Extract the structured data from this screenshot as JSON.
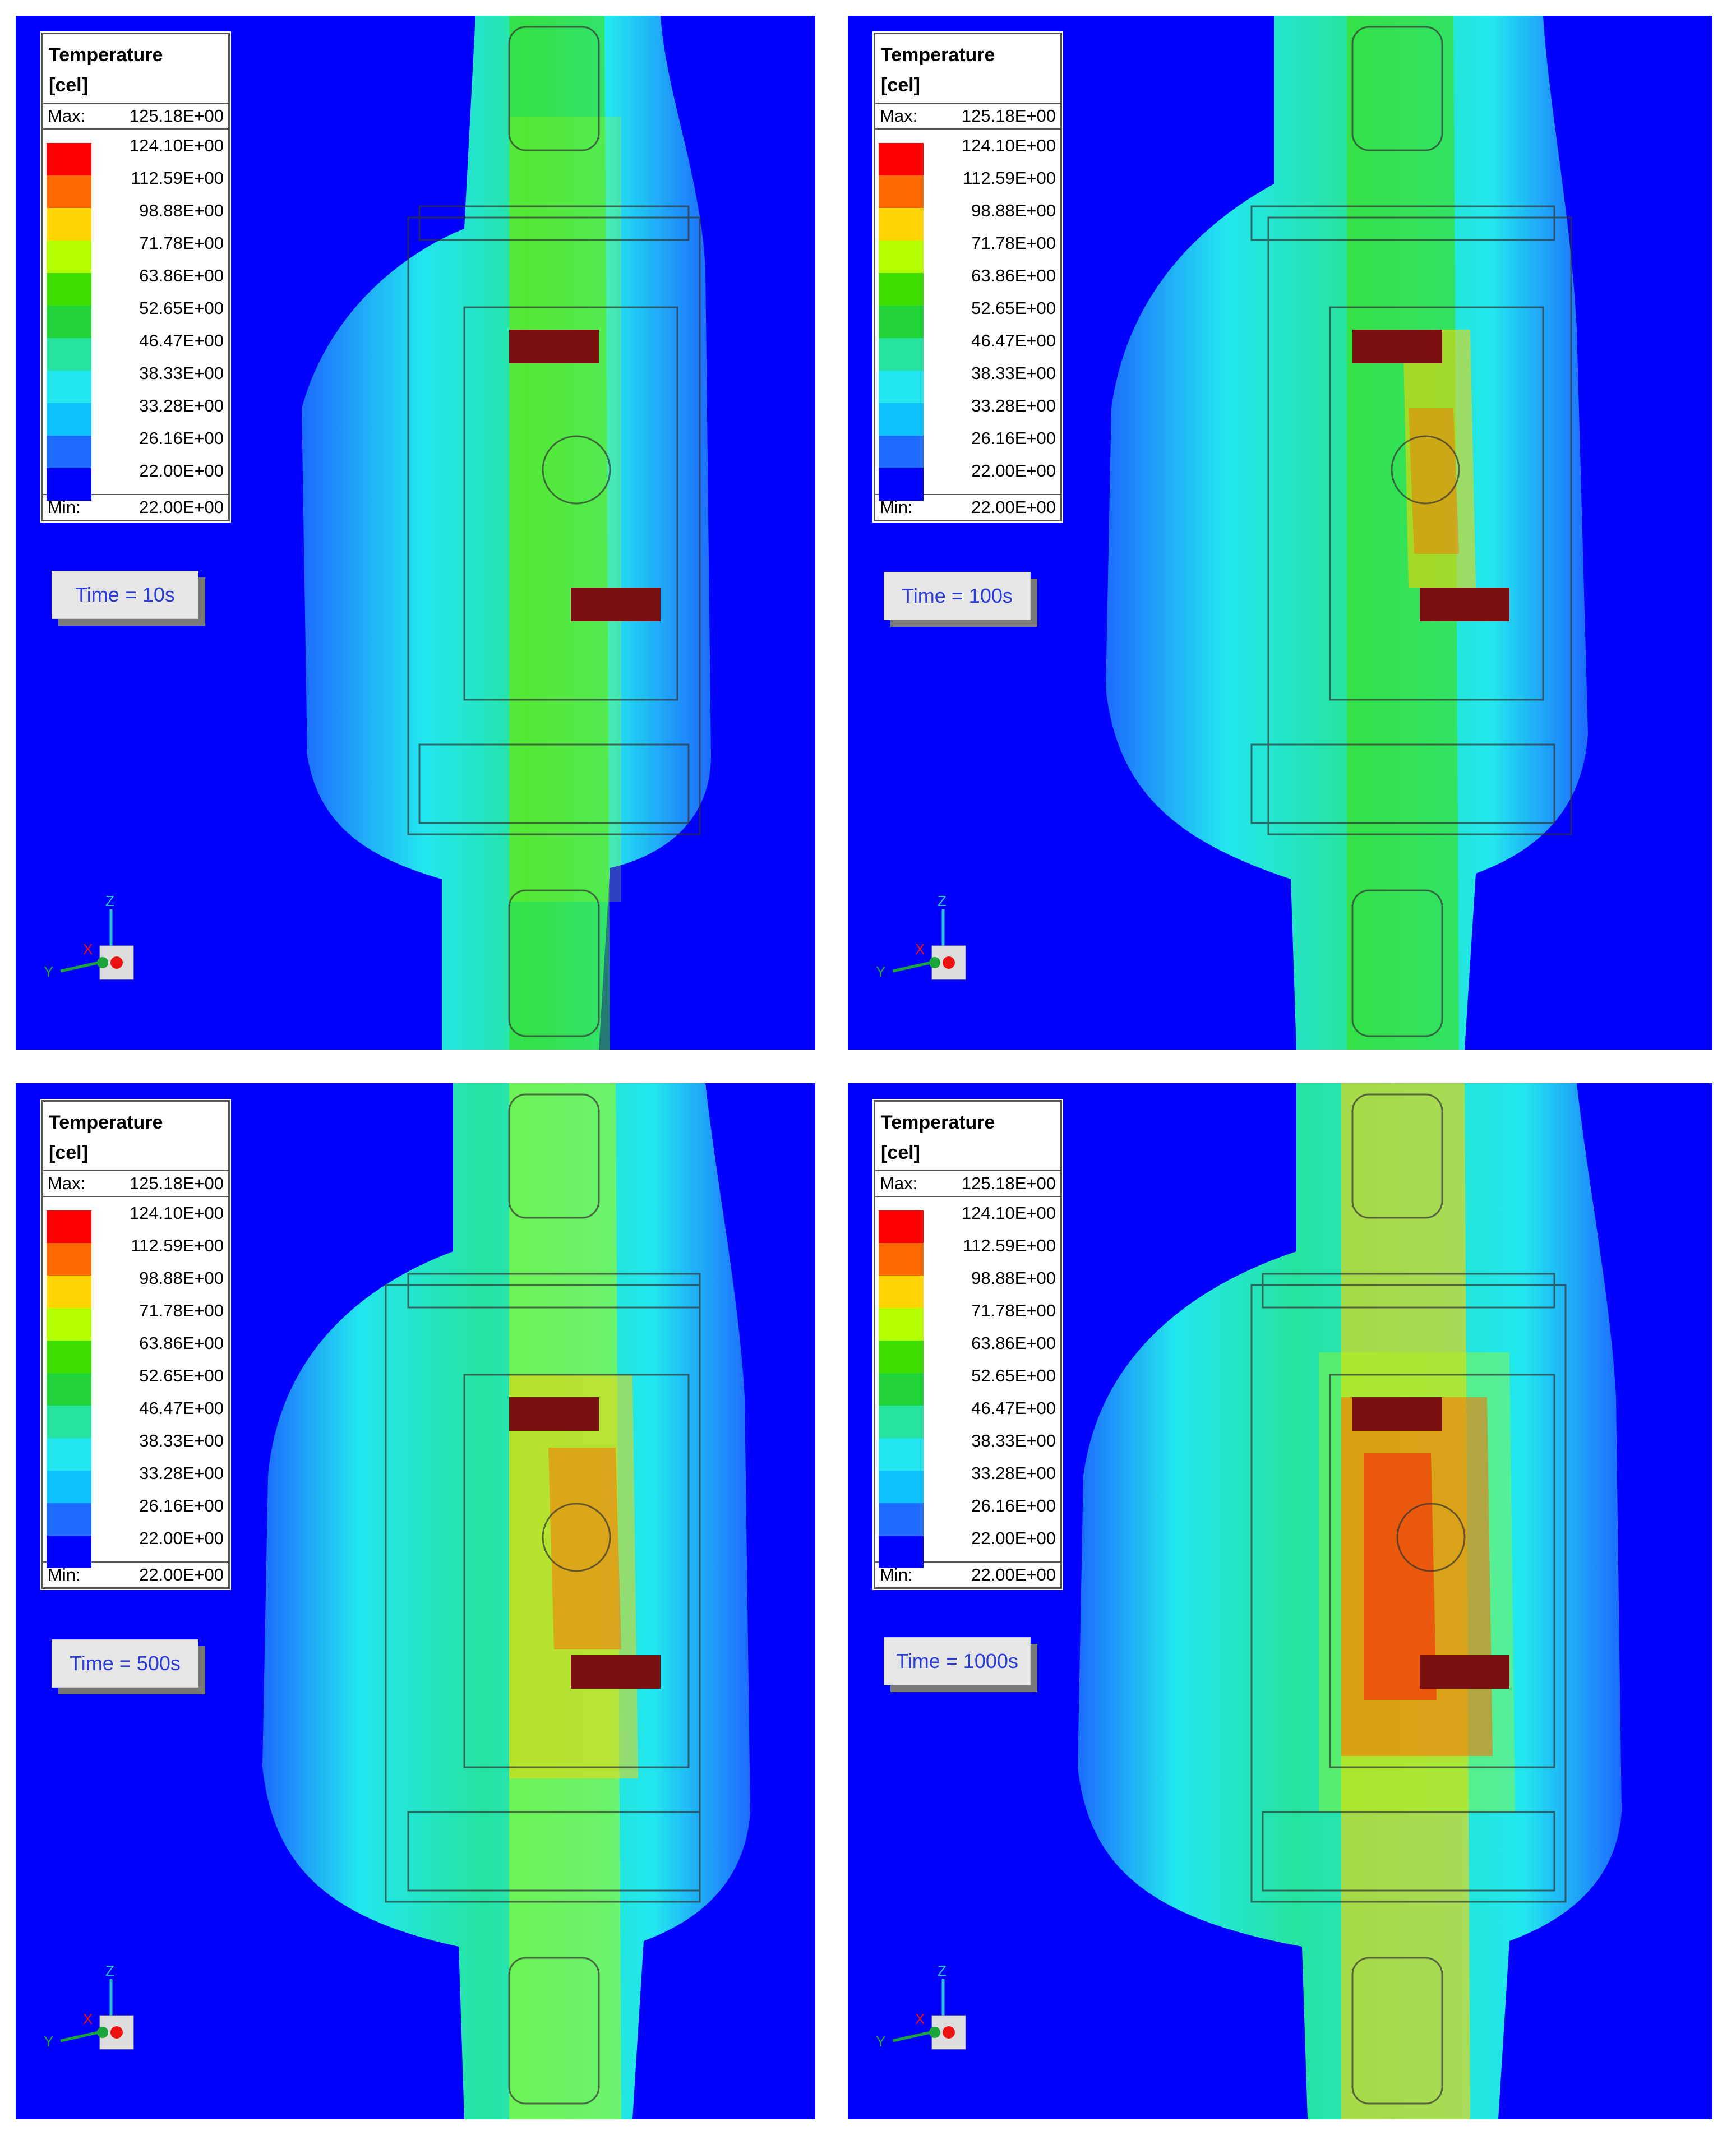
{
  "legend": {
    "title_line1": "Temperature",
    "title_line2": "[cel]",
    "max_label": "Max:",
    "max_value": "125.18E+00",
    "min_label": "Min:",
    "min_value": "22.00E+00",
    "ticks": [
      "124.10E+00",
      "112.59E+00",
      "98.88E+00",
      "71.78E+00",
      "63.86E+00",
      "52.65E+00",
      "46.47E+00",
      "38.33E+00",
      "33.28E+00",
      "26.16E+00",
      "22.00E+00"
    ],
    "colors": [
      "#ff0000",
      "#ff6a00",
      "#ffd400",
      "#b5ff00",
      "#3fe000",
      "#22d43a",
      "#26e3a0",
      "#22e7ef",
      "#0ec1ff",
      "#1d6cff",
      "#0000ff"
    ]
  },
  "panels": [
    {
      "time_label": "Time = 10s"
    },
    {
      "time_label": "Time = 100s"
    },
    {
      "time_label": "Time = 500s"
    },
    {
      "time_label": "Time = 1000s"
    }
  ],
  "axes": {
    "z": "Z",
    "y": "Y",
    "x": "X"
  },
  "colors": {
    "background": "#0000ff",
    "timebox_text": "#2a3bd8"
  }
}
